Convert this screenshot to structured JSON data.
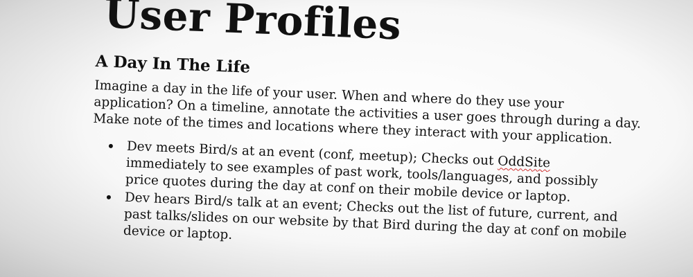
{
  "document": {
    "title": "User Profiles",
    "section": {
      "heading": "A Day In The Life",
      "intro_lines": [
        "Imagine a day in the life of your user. When and where do they use your",
        "application? On a timeline, annotate the activities a user goes through during a day.",
        "Make note of the times and locations where they interact with your application."
      ],
      "bullets": [
        {
          "line1_before": "Dev meets Bird/s at an event (conf, meetup); Checks out ",
          "line1_flagged": "OddSite",
          "line2": "immediately to see examples of past work, tools/languages, and possibly",
          "line3": "price quotes during the day at conf on their mobile device or laptop."
        },
        {
          "line1": "Dev hears Bird/s talk at an event; Checks out the list of future, current, and",
          "line2": "past talks/slides on our website by that Bird during the day at conf on mobile",
          "line3": "device or laptop."
        }
      ]
    }
  }
}
